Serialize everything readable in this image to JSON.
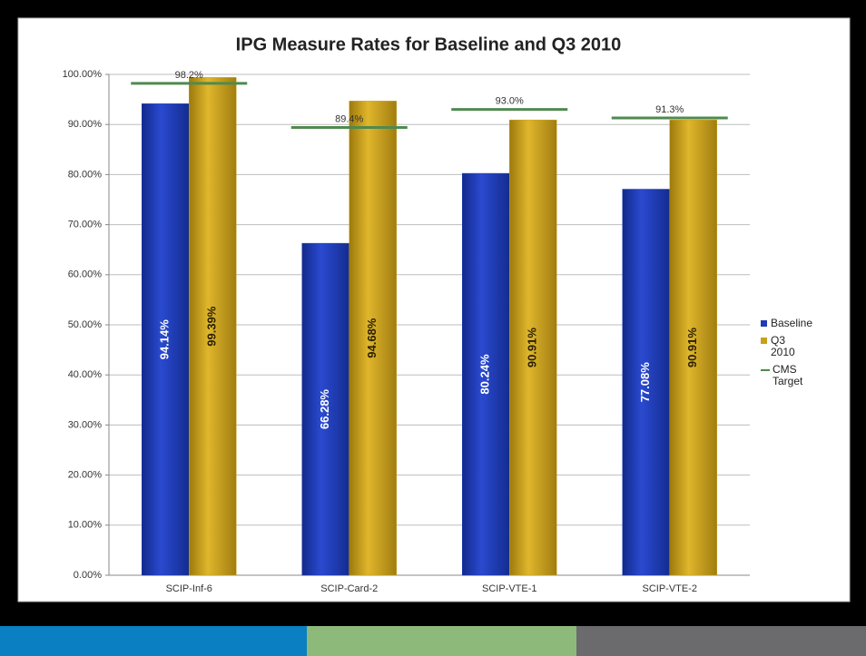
{
  "chart_data": {
    "type": "bar",
    "title": "IPG Measure Rates for Baseline and Q3 2010",
    "categories": [
      "SCIP-Inf-6",
      "SCIP-Card-2",
      "SCIP-VTE-1",
      "SCIP-VTE-2"
    ],
    "series": [
      {
        "name": "Baseline",
        "color": "#1f3cb4",
        "values": [
          94.14,
          66.28,
          80.24,
          77.08
        ],
        "value_labels": [
          "94.14%",
          "66.28%",
          "80.24%",
          "77.08%"
        ]
      },
      {
        "name": "Q3 2010",
        "color": "#c9a01c",
        "values": [
          99.39,
          94.68,
          90.91,
          90.91
        ],
        "value_labels": [
          "99.39%",
          "94.68%",
          "90.91%",
          "90.91%"
        ]
      },
      {
        "name": "CMS Target",
        "color": "#4f8a4f",
        "type": "line",
        "values": [
          98.2,
          89.4,
          93.0,
          91.3
        ],
        "value_labels": [
          "98.2%",
          "89.4%",
          "93.0%",
          "91.3%"
        ]
      }
    ],
    "ylim": [
      0,
      100
    ],
    "yticks": [
      {
        "value": 0,
        "label": "0.00%"
      },
      {
        "value": 10,
        "label": "10.00%"
      },
      {
        "value": 20,
        "label": "20.00%"
      },
      {
        "value": 30,
        "label": "30.00%"
      },
      {
        "value": 40,
        "label": "40.00%"
      },
      {
        "value": 50,
        "label": "50.00%"
      },
      {
        "value": 60,
        "label": "60.00%"
      },
      {
        "value": 70,
        "label": "70.00%"
      },
      {
        "value": 80,
        "label": "80.00%"
      },
      {
        "value": 90,
        "label": "90.00%"
      },
      {
        "value": 100,
        "label": "100.00%"
      }
    ],
    "grid": true,
    "legend": "right"
  }
}
